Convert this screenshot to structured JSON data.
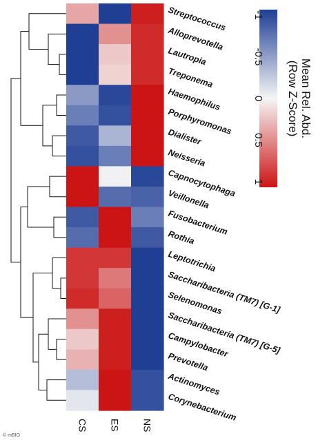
{
  "chart_data": {
    "type": "heatmap",
    "columns": [
      "CS",
      "ES",
      "NS"
    ],
    "rows": [
      "Streptococcus",
      "Alloprevotella",
      "Lautropia",
      "Treponema",
      "Haemophilus",
      "Porphyromonas",
      "Dialister",
      "Neisseria",
      "Capnocytophaga",
      "Veillonella",
      "Fusobacterium",
      "Rothia",
      "Leptotrichia",
      "Saccharibacteria (TM7) [G-1]",
      "Selenomonas",
      "Saccharibacteria (TM7) [G-5]",
      "Campylobacter",
      "Prevotella",
      "Actinomyces",
      "Corynebacterium"
    ],
    "values": [
      [
        0.35,
        -1.0,
        0.95
      ],
      [
        -1.0,
        0.45,
        0.9
      ],
      [
        -1.0,
        0.2,
        0.9
      ],
      [
        -1.0,
        0.15,
        0.9
      ],
      [
        -0.5,
        -0.95,
        1.0
      ],
      [
        -0.65,
        -0.9,
        1.0
      ],
      [
        -0.85,
        -0.35,
        1.0
      ],
      [
        -0.9,
        -0.65,
        1.0
      ],
      [
        1.0,
        -0.02,
        -0.95
      ],
      [
        1.0,
        -0.75,
        -0.8
      ],
      [
        -0.85,
        1.0,
        -0.65
      ],
      [
        -0.75,
        1.0,
        -0.85
      ],
      [
        0.85,
        0.85,
        -1.0
      ],
      [
        0.85,
        0.55,
        -1.0
      ],
      [
        0.9,
        0.65,
        -1.0
      ],
      [
        0.45,
        0.95,
        -1.0
      ],
      [
        0.2,
        0.95,
        -1.0
      ],
      [
        0.3,
        0.95,
        -1.0
      ],
      [
        -0.3,
        1.0,
        -0.9
      ],
      [
        -0.08,
        1.0,
        -0.9
      ]
    ],
    "colorbar": {
      "title_line1": "Mean Rel. Abd.",
      "title_line2": "(Row Z-Score)",
      "ticks": [
        "-1",
        "-0.5",
        "0",
        "0.5",
        "1"
      ],
      "range": [
        -1,
        1
      ]
    },
    "colors": {
      "low": "#1f3f95",
      "mid": "#f5f5f5",
      "high": "#cc1414"
    },
    "grid": false
  },
  "credit": "© mBIO"
}
